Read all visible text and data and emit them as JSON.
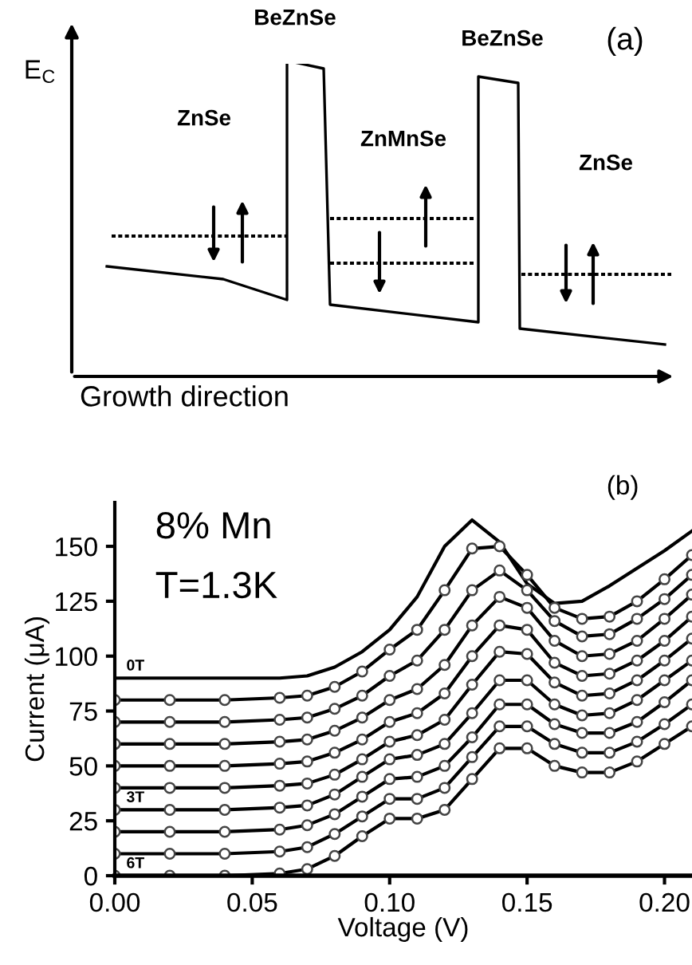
{
  "chart_data": [
    {
      "type": "other",
      "xlabel": "Growth direction",
      "ylabel": "E$_{C}$",
      "annotations": [
        "BeZnSe",
        "BeZnSe",
        "ZnSe",
        "ZnMnSe",
        "ZnSe",
        "(a)"
      ]
    },
    {
      "type": "line",
      "xlabel": "Voltage (V)",
      "ylabel": "Current (μA)",
      "x": [
        0,
        0.02,
        0.04,
        0.06,
        0.07,
        0.08,
        0.09,
        0.1,
        0.11,
        0.12,
        0.13,
        0.14,
        0.15,
        0.16,
        0.17,
        0.18,
        0.19,
        0.2,
        0.21
      ],
      "series": [
        {
          "color": "#000000",
          "marker": "none",
          "values": [
            90,
            90,
            90,
            90,
            91,
            95,
            102,
            112,
            127,
            150,
            162,
            152,
            133,
            124,
            125,
            132,
            140,
            148,
            157
          ]
        },
        {
          "color": "#000000",
          "marker": "circle",
          "values": [
            80,
            80,
            80,
            81,
            82,
            86,
            93,
            103,
            112,
            130,
            149,
            150,
            137,
            122,
            117,
            118,
            125,
            135,
            146
          ]
        },
        {
          "color": "#000000",
          "marker": "circle",
          "values": [
            70,
            70,
            70,
            71,
            72,
            76,
            82,
            91,
            98,
            112,
            130,
            139,
            130,
            116,
            109,
            110,
            117,
            126,
            137
          ]
        },
        {
          "color": "#000000",
          "marker": "circle",
          "values": [
            60,
            60,
            60,
            61,
            62,
            66,
            72,
            80,
            85,
            96,
            114,
            127,
            122,
            107,
            100,
            101,
            107,
            117,
            128
          ]
        },
        {
          "color": "#000000",
          "marker": "circle",
          "values": [
            50,
            50,
            50,
            51,
            52,
            56,
            62,
            70,
            74,
            83,
            100,
            114,
            112,
            97,
            91,
            92,
            98,
            107,
            118
          ]
        },
        {
          "color": "#000000",
          "marker": "circle",
          "values": [
            40,
            40,
            40,
            41,
            42,
            46,
            53,
            61,
            64,
            71,
            87,
            102,
            101,
            88,
            82,
            83,
            89,
            98,
            108
          ]
        },
        {
          "color": "#000000",
          "marker": "circle",
          "values": [
            30,
            30,
            30,
            31,
            32,
            37,
            45,
            53,
            55,
            60,
            74,
            89,
            89,
            78,
            73,
            74,
            80,
            89,
            98
          ]
        },
        {
          "color": "#000000",
          "marker": "circle",
          "values": [
            20,
            20,
            20,
            21,
            23,
            28,
            36,
            44,
            45,
            50,
            63,
            78,
            78,
            69,
            65,
            65,
            70,
            79,
            89
          ]
        },
        {
          "color": "#000000",
          "marker": "circle",
          "values": [
            10,
            10,
            10,
            11,
            13,
            19,
            27,
            35,
            35,
            40,
            54,
            68,
            68,
            60,
            56,
            56,
            61,
            69,
            78
          ]
        },
        {
          "color": "#000000",
          "marker": "circle",
          "values": [
            0,
            0,
            0,
            1,
            3,
            9,
            18,
            26,
            26,
            30,
            44,
            58,
            58,
            50,
            47,
            47,
            52,
            60,
            68
          ]
        }
      ],
      "xlim": [
        0,
        0.21
      ],
      "ylim": [
        0,
        170
      ],
      "xticks": [
        {
          "value": 0,
          "label": "0.00"
        },
        0.05,
        {
          "value": 0.1,
          "label": "0.10"
        },
        0.15,
        {
          "value": 0.2,
          "label": "0.20"
        }
      ],
      "yticks": [
        0,
        25,
        50,
        75,
        100,
        125,
        150
      ],
      "grid": false,
      "legend": false,
      "annotations": [
        "(b)",
        "8% Mn",
        "T=1.3K",
        {
          "text": "0T",
          "y": 90
        },
        {
          "text": "3T",
          "y": 30
        },
        {
          "text": "6T",
          "y": 0
        }
      ]
    }
  ]
}
